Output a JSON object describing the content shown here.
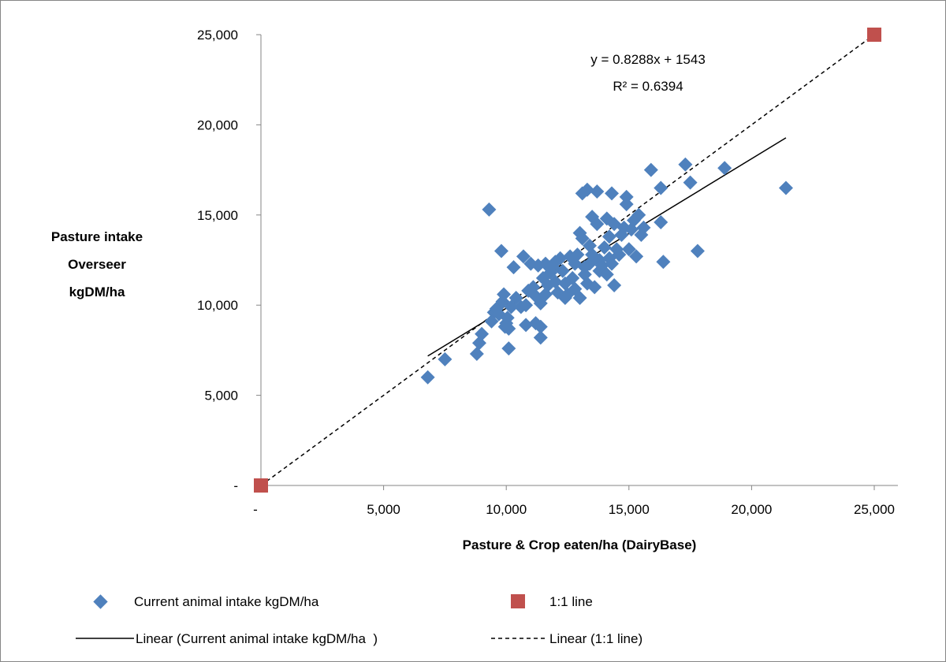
{
  "chart_data": {
    "type": "scatter",
    "xlabel": "Pasture & Crop eaten/ha (DairyBase)",
    "ylabel_lines": [
      "Pasture intake",
      "Overseer",
      "kgDM/ha"
    ],
    "xlim": [
      0,
      25000
    ],
    "ylim": [
      0,
      25000
    ],
    "x_ticks": [
      0,
      5000,
      10000,
      15000,
      20000,
      25000
    ],
    "y_ticks": [
      0,
      5000,
      10000,
      15000,
      20000,
      25000
    ],
    "x_tick_labels": [
      "-",
      "5,000",
      "10,000",
      "15,000",
      "20,000",
      "25,000"
    ],
    "y_tick_labels": [
      "-",
      "5,000",
      "10,000",
      "15,000",
      "20,000",
      "25,000"
    ],
    "grid": false,
    "legend_position": "bottom",
    "annotation": {
      "equation": "y = 0.8288x + 1543",
      "r_squared": "R² = 0.6394"
    },
    "series": [
      {
        "name": "Current animal intake kgDM/ha",
        "marker": "diamond",
        "color": "#4f81bd",
        "points": [
          [
            6800,
            6000
          ],
          [
            7500,
            7000
          ],
          [
            8800,
            7300
          ],
          [
            8900,
            7900
          ],
          [
            9000,
            8400
          ],
          [
            9300,
            15300
          ],
          [
            9400,
            9100
          ],
          [
            9500,
            9600
          ],
          [
            9600,
            9800
          ],
          [
            9700,
            9500
          ],
          [
            9800,
            13000
          ],
          [
            9850,
            10200
          ],
          [
            9900,
            10600
          ],
          [
            9950,
            8800
          ],
          [
            10000,
            9000
          ],
          [
            10050,
            9300
          ],
          [
            10100,
            8700
          ],
          [
            10100,
            7600
          ],
          [
            10200,
            9900
          ],
          [
            10300,
            12100
          ],
          [
            10400,
            10400
          ],
          [
            10600,
            9900
          ],
          [
            10700,
            12700
          ],
          [
            10800,
            8900
          ],
          [
            10800,
            10000
          ],
          [
            10900,
            10800
          ],
          [
            11000,
            12300
          ],
          [
            11100,
            11000
          ],
          [
            11200,
            9000
          ],
          [
            11200,
            10500
          ],
          [
            11300,
            12200
          ],
          [
            11400,
            10100
          ],
          [
            11400,
            8800
          ],
          [
            11400,
            8200
          ],
          [
            11500,
            11500
          ],
          [
            11600,
            12300
          ],
          [
            11600,
            10600
          ],
          [
            11700,
            11100
          ],
          [
            11800,
            11800
          ],
          [
            11900,
            12100
          ],
          [
            12000,
            12400
          ],
          [
            12000,
            11300
          ],
          [
            12100,
            10700
          ],
          [
            12200,
            12600
          ],
          [
            12300,
            11900
          ],
          [
            12400,
            11200
          ],
          [
            12400,
            10400
          ],
          [
            12500,
            10600
          ],
          [
            12600,
            12700
          ],
          [
            12700,
            11500
          ],
          [
            12800,
            12300
          ],
          [
            12800,
            10900
          ],
          [
            12900,
            12800
          ],
          [
            13000,
            14000
          ],
          [
            13000,
            10400
          ],
          [
            13100,
            13700
          ],
          [
            13100,
            16200
          ],
          [
            13200,
            12100
          ],
          [
            13200,
            11700
          ],
          [
            13300,
            16400
          ],
          [
            13300,
            11200
          ],
          [
            13400,
            12300
          ],
          [
            13400,
            13300
          ],
          [
            13500,
            14900
          ],
          [
            13500,
            12800
          ],
          [
            13600,
            11000
          ],
          [
            13700,
            16300
          ],
          [
            13700,
            14500
          ],
          [
            13800,
            11900
          ],
          [
            13800,
            12500
          ],
          [
            13900,
            12200
          ],
          [
            14000,
            13200
          ],
          [
            14100,
            14800
          ],
          [
            14100,
            11700
          ],
          [
            14200,
            12600
          ],
          [
            14200,
            13800
          ],
          [
            14300,
            16200
          ],
          [
            14300,
            12300
          ],
          [
            14400,
            14500
          ],
          [
            14400,
            11100
          ],
          [
            14500,
            13100
          ],
          [
            14600,
            12800
          ],
          [
            14700,
            13900
          ],
          [
            14800,
            14300
          ],
          [
            14900,
            15600
          ],
          [
            14900,
            16000
          ],
          [
            15000,
            13100
          ],
          [
            15100,
            14200
          ],
          [
            15200,
            14700
          ],
          [
            15300,
            12700
          ],
          [
            15400,
            15000
          ],
          [
            15500,
            13900
          ],
          [
            15600,
            14300
          ],
          [
            15900,
            17500
          ],
          [
            16300,
            16500
          ],
          [
            16300,
            14600
          ],
          [
            16400,
            12400
          ],
          [
            17300,
            17800
          ],
          [
            17500,
            16800
          ],
          [
            17800,
            13000
          ],
          [
            18900,
            17600
          ],
          [
            21400,
            16500
          ]
        ]
      },
      {
        "name": "1:1 line",
        "marker": "square",
        "color": "#c0504d",
        "points": [
          [
            0,
            0
          ],
          [
            25000,
            25000
          ]
        ]
      }
    ],
    "trendlines": [
      {
        "name": "Linear (Current animal intake kgDM/ha  )",
        "style": "solid",
        "slope": 0.8288,
        "intercept": 1543,
        "x_range": [
          6800,
          21400
        ]
      },
      {
        "name": "Linear (1:1 line)",
        "style": "dashed",
        "slope": 1,
        "intercept": 0,
        "x_range": [
          0,
          25000
        ]
      }
    ]
  }
}
